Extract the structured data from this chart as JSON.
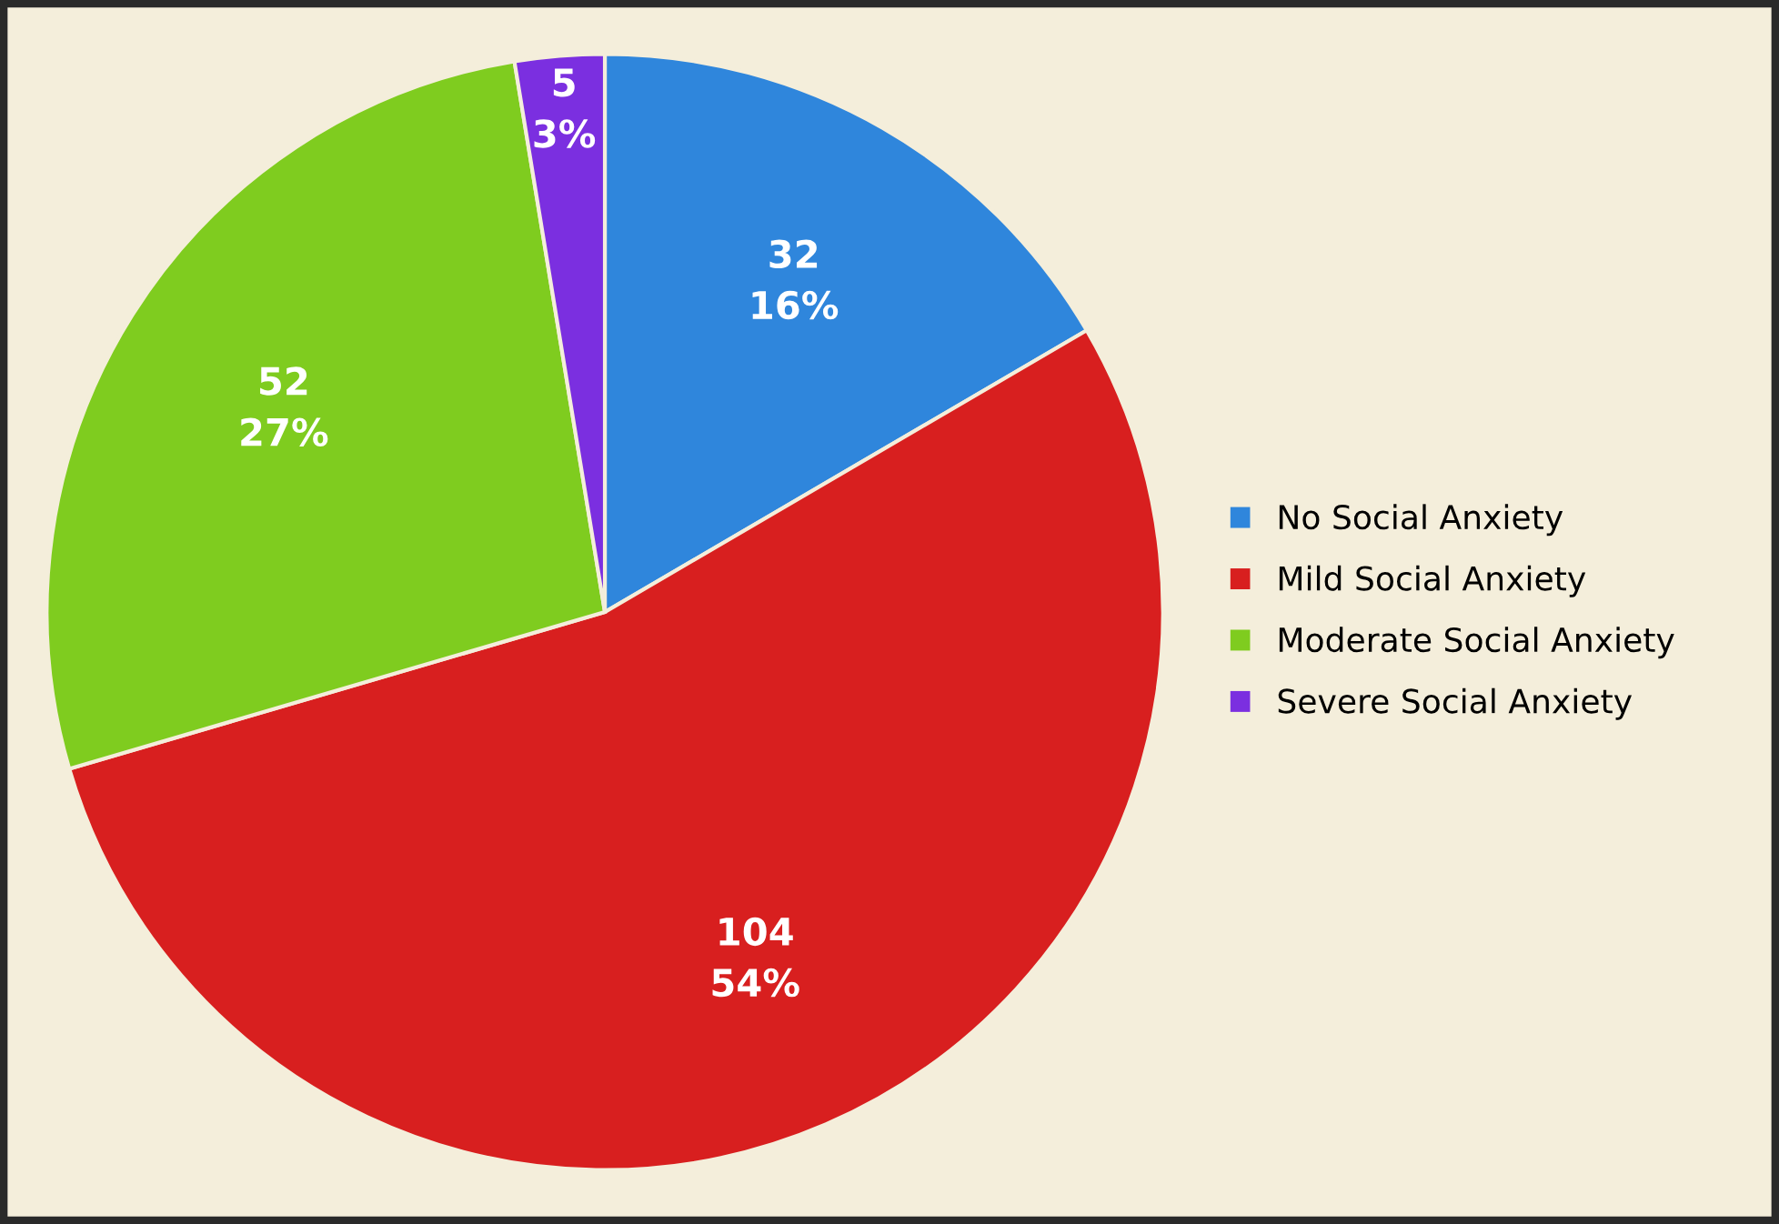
{
  "chart_data": {
    "type": "pie",
    "categories": [
      "No Social Anxiety",
      "Mild Social Anxiety",
      "Moderate Social Anxiety",
      "Severe Social Anxiety"
    ],
    "values": [
      32,
      104,
      52,
      5
    ],
    "colors": [
      "#2f86dc",
      "#d81f1f",
      "#7fcc1f",
      "#7b2fe0"
    ],
    "value_labels": [
      "32\n16%",
      "104\n54%",
      "52\n27%",
      "5\n3%"
    ],
    "legend": "right"
  }
}
